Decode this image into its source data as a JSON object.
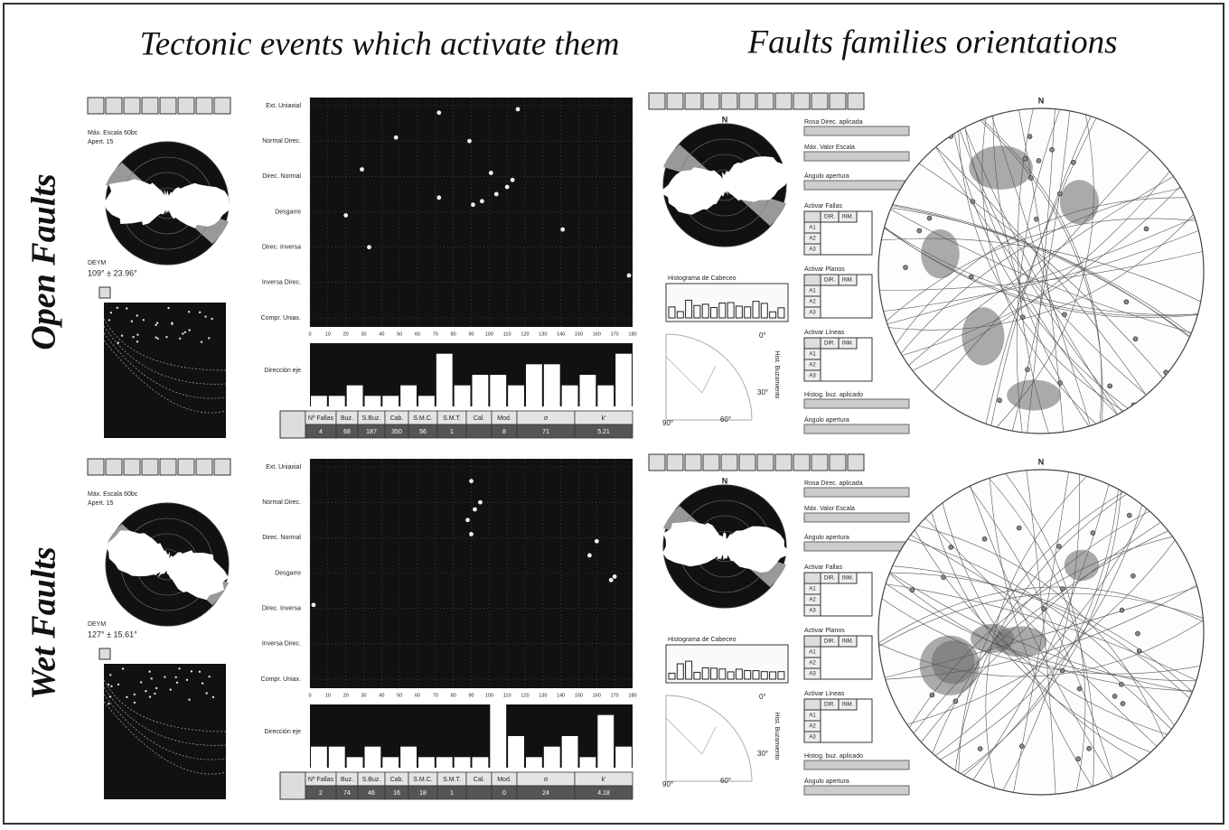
{
  "titles": [
    "Tectonic events which activate them",
    "Faults families orientations"
  ],
  "regime_labels": [
    "Ext. Uniaxial",
    "Normal Direc.",
    "Direc. Normal",
    "Desgarre",
    "Direc. Inversa",
    "Inversa Direc.",
    "Compr. Uniax."
  ],
  "axis_label": "Dirección eje",
  "xticks": [
    0,
    10,
    20,
    30,
    40,
    50,
    60,
    70,
    80,
    90,
    100,
    110,
    120,
    130,
    140,
    150,
    160,
    170,
    180
  ],
  "regime_lim": [
    0,
    6
  ],
  "hist_lim": [
    0,
    6
  ],
  "table_headers": [
    "Nº Fallas",
    "Buz.",
    "S.Buz.",
    "Cab.",
    "S.M.C.",
    "S.M.T.",
    "Cal.",
    "Mod.",
    "σ",
    "k'"
  ],
  "right_labels": {
    "fields": [
      "Rosa Direc. aplicada",
      "Máx. Valor Escala",
      "Ángulo apertura"
    ],
    "groups": [
      "Activar Fallas",
      "Activar Planos",
      "Activar Líneas"
    ],
    "group_headers": [
      "DIR.",
      "INM."
    ],
    "group_rows": [
      "A1",
      "A2",
      "A3"
    ],
    "bottom_fields": [
      "Histog. buz. aplicado",
      "Ángulo apertura"
    ],
    "north": "N",
    "pitch_histogram": "Histograma de Cabeceo",
    "dip_histogram": "Hist. Buzamiento",
    "dip_angles": [
      "0°",
      "30°",
      "60°",
      "90°"
    ]
  },
  "panels": [
    {
      "label": "Open Faults",
      "scale_text": "Máx. Escala 60bc",
      "aperture": "Apert. 15",
      "deym": "DEYM",
      "deym_value": "109° ± 23.96°",
      "table_values": [
        4,
        68,
        187,
        350,
        56,
        1,
        null,
        8,
        71,
        5.21
      ],
      "points": {
        "x": [
          116,
          48,
          89,
          29,
          101,
          113,
          110,
          104,
          72,
          96,
          91,
          20,
          141,
          33,
          178,
          72
        ],
        "y": [
          0.1,
          0.9,
          1.0,
          1.8,
          1.9,
          2.1,
          2.3,
          2.5,
          2.6,
          2.7,
          2.8,
          3.1,
          3.5,
          4.0,
          4.8,
          0.2
        ]
      },
      "histogram": [
        1,
        1,
        2,
        1,
        1,
        2,
        1,
        5,
        2,
        3,
        3,
        2,
        4,
        4,
        2,
        3,
        2,
        5
      ]
    },
    {
      "label": "Wet Faults",
      "scale_text": "Máx. Escala 60bc",
      "aperture": "Apert. 15",
      "deym": "DEYM",
      "deym_value": "127° ± 15.61°",
      "table_values": [
        2,
        74,
        46,
        16,
        18,
        1,
        null,
        0,
        24,
        4.18
      ],
      "points": {
        "x": [
          90,
          92,
          88,
          160,
          156,
          168,
          170,
          90,
          95,
          2
        ],
        "y": [
          0.4,
          1.2,
          1.5,
          2.1,
          2.5,
          3.2,
          3.1,
          1.9,
          1.0,
          3.9
        ]
      },
      "histogram": [
        2,
        2,
        1,
        2,
        1,
        2,
        1,
        1,
        1,
        1,
        6,
        3,
        1,
        2,
        3,
        1,
        5,
        2
      ]
    }
  ]
}
